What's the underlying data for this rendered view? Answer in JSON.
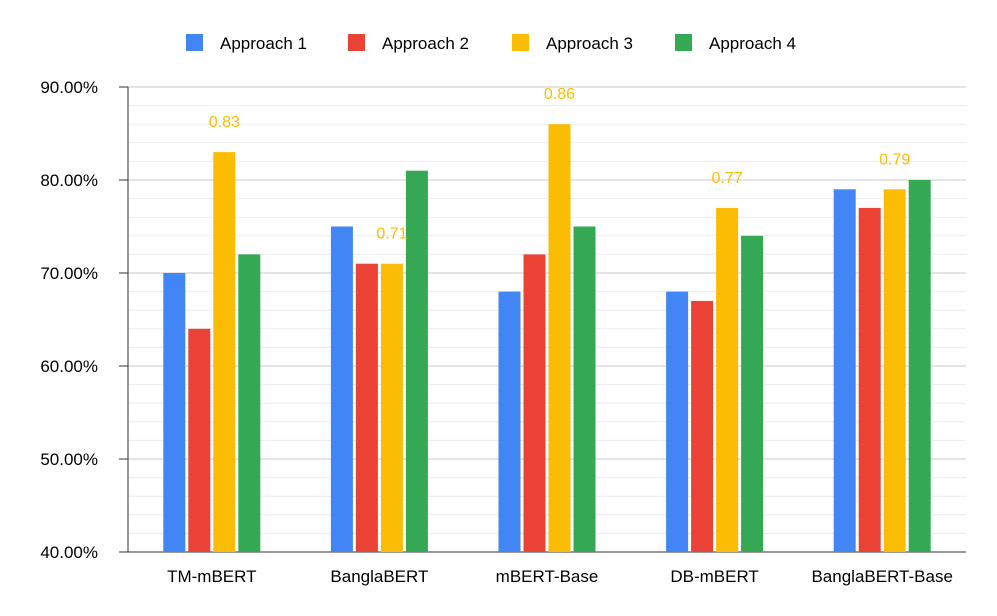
{
  "chart_data": {
    "type": "bar",
    "title": "",
    "xlabel": "",
    "ylabel": "",
    "categories": [
      "TM-mBERT",
      "BanglaBERT",
      "mBERT-Base",
      "DB-mBERT",
      "BanglaBERT-Base"
    ],
    "series": [
      {
        "name": "Approach 1",
        "color": "#4285f4",
        "values": [
          0.7,
          0.75,
          0.68,
          0.68,
          0.79
        ]
      },
      {
        "name": "Approach 2",
        "color": "#ea4335",
        "values": [
          0.64,
          0.71,
          0.72,
          0.67,
          0.77
        ]
      },
      {
        "name": "Approach 3",
        "color": "#fbbc04",
        "values": [
          0.83,
          0.71,
          0.86,
          0.77,
          0.79
        ]
      },
      {
        "name": "Approach 4",
        "color": "#34a853",
        "values": [
          0.72,
          0.81,
          0.75,
          0.74,
          0.8
        ]
      }
    ],
    "data_labels": {
      "series_index": 2,
      "labels": [
        "0.83",
        "0.71",
        "0.86",
        "0.77",
        "0.79"
      ]
    },
    "ylim": [
      0.4,
      0.9
    ],
    "y_ticks": [
      "40.00%",
      "50.00%",
      "60.00%",
      "70.00%",
      "80.00%",
      "90.00%"
    ],
    "y_tick_values": [
      0.4,
      0.5,
      0.6,
      0.7,
      0.8,
      0.9
    ],
    "grid": true,
    "minor_grid": true,
    "legend_position": "top-center"
  }
}
